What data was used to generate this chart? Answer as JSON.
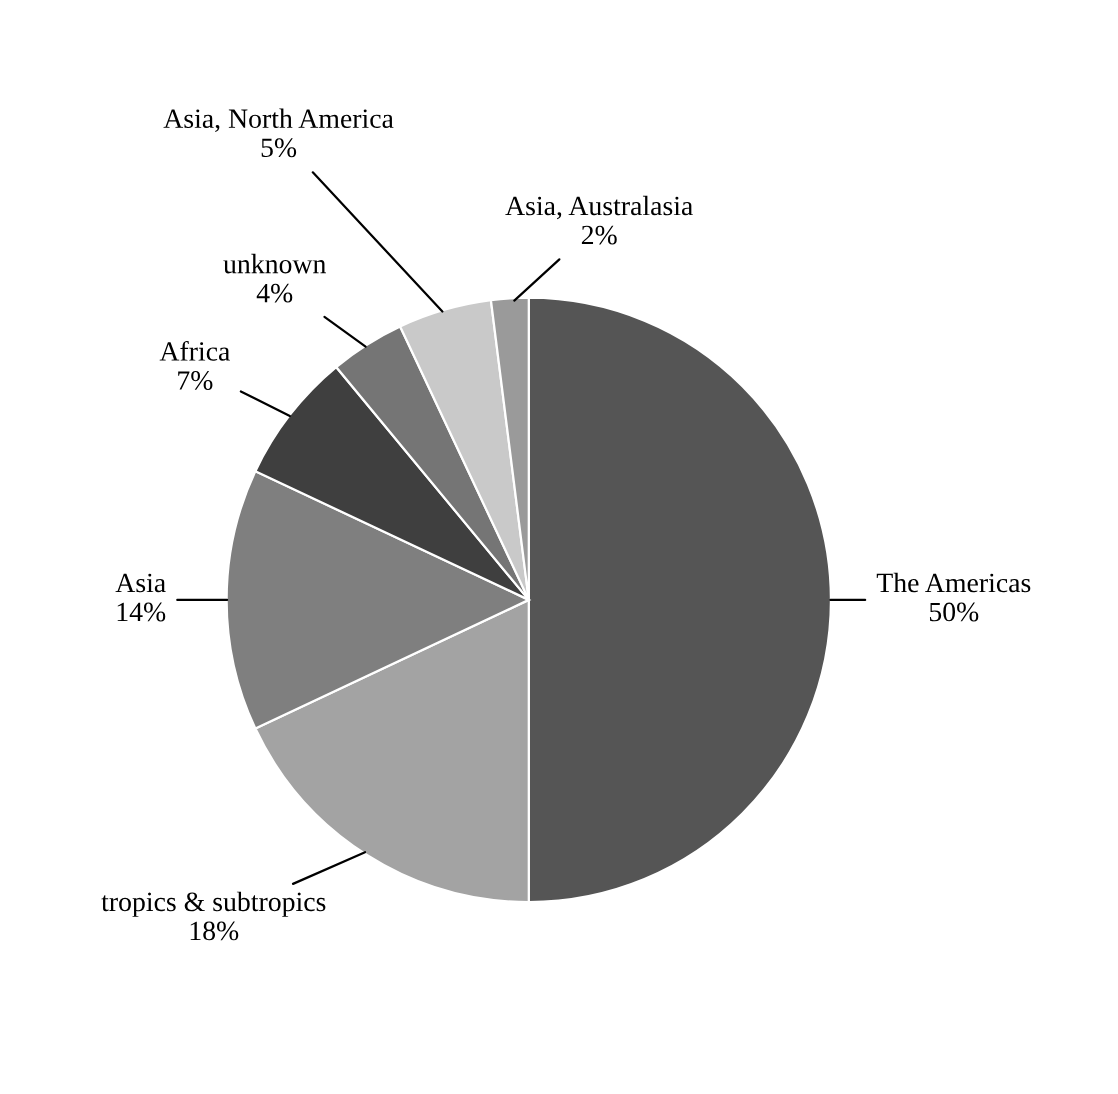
{
  "chart_data": {
    "type": "pie",
    "categories": [
      "The Americas",
      "tropics & subtropics",
      "Asia",
      "Africa",
      "unknown",
      "Asia, North America",
      "Asia, Australasia"
    ],
    "values": [
      50,
      18,
      14,
      7,
      4,
      5,
      2
    ],
    "colors": [
      "#555555",
      "#a3a3a3",
      "#7f7f7f",
      "#3f3f3f",
      "#757575",
      "#c9c9c9",
      "#9a9a9a"
    ],
    "value_labels": [
      "50%",
      "18%",
      "14%",
      "7%",
      "4%",
      "5%",
      "2%"
    ]
  }
}
